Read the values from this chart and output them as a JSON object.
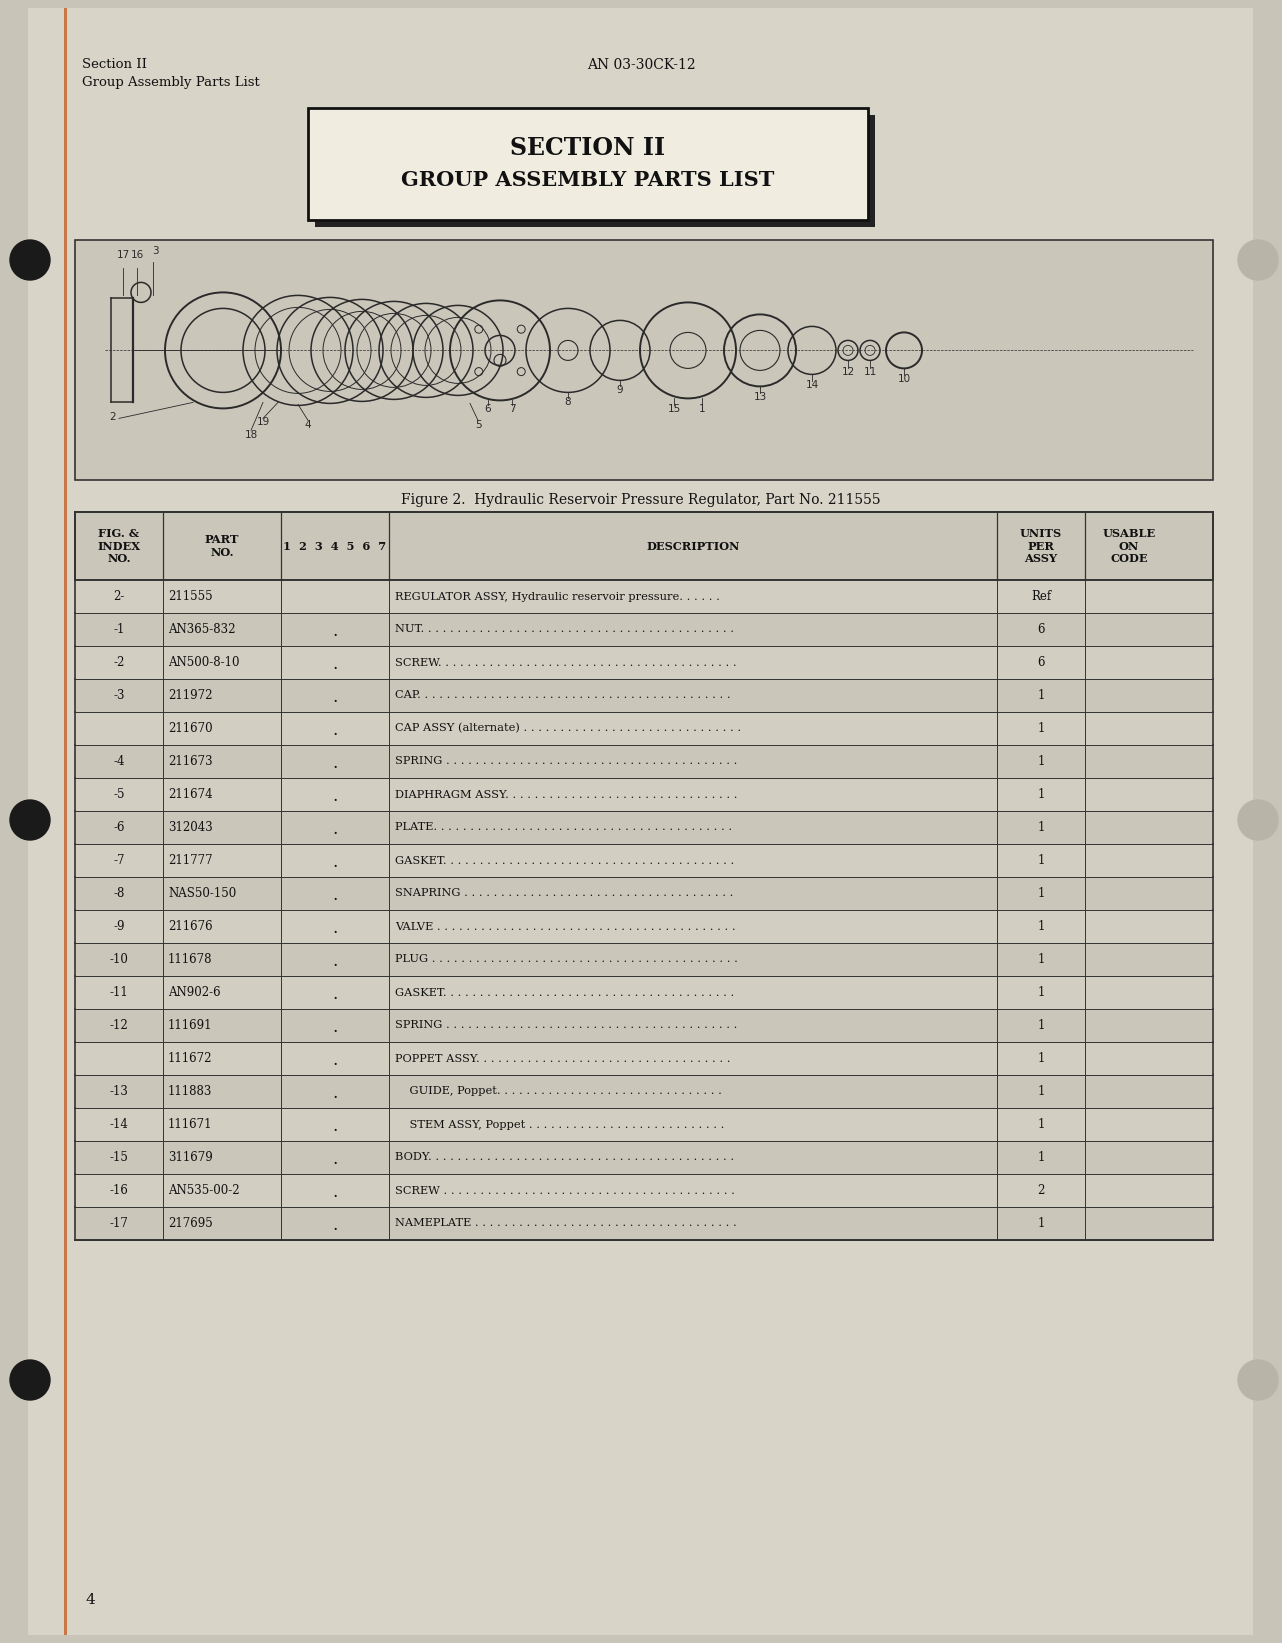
{
  "bg_color": "#c8c4b8",
  "page_color": "#d8d4c8",
  "header_left_line1": "Section II",
  "header_left_line2": "Group Assembly Parts List",
  "header_center": "AN 03-30CK-12",
  "section_title_line1": "SECTION II",
  "section_title_line2": "GROUP ASSEMBLY PARTS LIST",
  "fig_caption": "Figure 2.  Hydraulic Reservoir Pressure Regulator, Part No. 211555",
  "table_rows": [
    [
      "2-",
      "211555",
      "",
      "REGULATOR ASSY, Hydraulic reservoir pressure. . . . . .",
      "Ref",
      ""
    ],
    [
      "-1",
      "AN365-832",
      ".",
      "NUT. . . . . . . . . . . . . . . . . . . . . . . . . . . . . . . . . . . . . . . . . . .",
      "6",
      ""
    ],
    [
      "-2",
      "AN500-8-10",
      ".",
      "SCREW. . . . . . . . . . . . . . . . . . . . . . . . . . . . . . . . . . . . . . . . .",
      "6",
      ""
    ],
    [
      "-3",
      "211972",
      ".",
      "CAP. . . . . . . . . . . . . . . . . . . . . . . . . . . . . . . . . . . . . . . . . . .",
      "1",
      ""
    ],
    [
      "",
      "211670",
      ".",
      "CAP ASSY (alternate) . . . . . . . . . . . . . . . . . . . . . . . . . . . . . .",
      "1",
      ""
    ],
    [
      "-4",
      "211673",
      ".",
      "SPRING . . . . . . . . . . . . . . . . . . . . . . . . . . . . . . . . . . . . . . . .",
      "1",
      ""
    ],
    [
      "-5",
      "211674",
      ".",
      "DIAPHRAGM ASSY. . . . . . . . . . . . . . . . . . . . . . . . . . . . . . . .",
      "1",
      ""
    ],
    [
      "-6",
      "312043",
      ".",
      "PLATE. . . . . . . . . . . . . . . . . . . . . . . . . . . . . . . . . . . . . . . . .",
      "1",
      ""
    ],
    [
      "-7",
      "211777",
      ".",
      "GASKET. . . . . . . . . . . . . . . . . . . . . . . . . . . . . . . . . . . . . . . .",
      "1",
      ""
    ],
    [
      "-8",
      "NAS50-150",
      ".",
      "SNAPRING . . . . . . . . . . . . . . . . . . . . . . . . . . . . . . . . . . . . .",
      "1",
      ""
    ],
    [
      "-9",
      "211676",
      ".",
      "VALVE . . . . . . . . . . . . . . . . . . . . . . . . . . . . . . . . . . . . . . . . .",
      "1",
      ""
    ],
    [
      "-10",
      "111678",
      ".",
      "PLUG . . . . . . . . . . . . . . . . . . . . . . . . . . . . . . . . . . . . . . . . . .",
      "1",
      ""
    ],
    [
      "-11",
      "AN902-6",
      ".",
      "GASKET. . . . . . . . . . . . . . . . . . . . . . . . . . . . . . . . . . . . . . . .",
      "1",
      ""
    ],
    [
      "-12",
      "111691",
      ".",
      "SPRING . . . . . . . . . . . . . . . . . . . . . . . . . . . . . . . . . . . . . . . .",
      "1",
      ""
    ],
    [
      "",
      "111672",
      ".",
      "POPPET ASSY. . . . . . . . . . . . . . . . . . . . . . . . . . . . . . . . . . .",
      "1",
      ""
    ],
    [
      "-13",
      "111883",
      ".",
      "    GUIDE, Poppet. . . . . . . . . . . . . . . . . . . . . . . . . . . . . . .",
      "1",
      ""
    ],
    [
      "-14",
      "111671",
      ".",
      "    STEM ASSY, Poppet . . . . . . . . . . . . . . . . . . . . . . . . . . .",
      "1",
      ""
    ],
    [
      "-15",
      "311679",
      ".",
      "BODY. . . . . . . . . . . . . . . . . . . . . . . . . . . . . . . . . . . . . . . . . .",
      "1",
      ""
    ],
    [
      "-16",
      "AN535-00-2",
      ".",
      "SCREW . . . . . . . . . . . . . . . . . . . . . . . . . . . . . . . . . . . . . . . .",
      "2",
      ""
    ],
    [
      "-17",
      "217695",
      ".",
      "NAMEPLATE . . . . . . . . . . . . . . . . . . . . . . . . . . . . . . . . . . . .",
      "1",
      ""
    ]
  ],
  "page_number": "4",
  "left_margin_line_color": "#c87848",
  "punch_hole_dark": "#1a1a1a",
  "punch_hole_light": "#b8b4a8"
}
